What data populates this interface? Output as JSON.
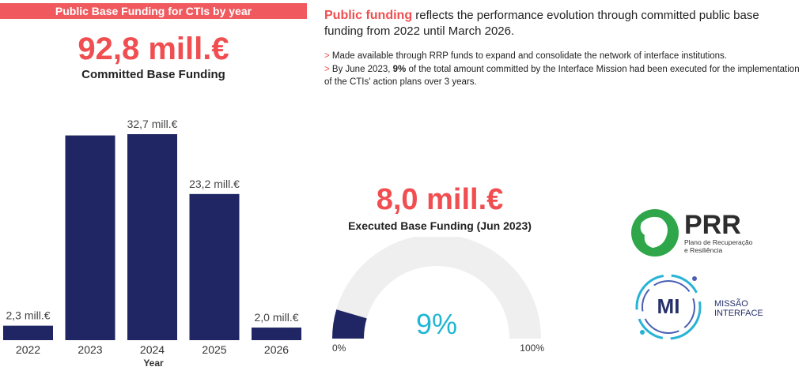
{
  "banner": {
    "title": "Public Base Funding for CTIs by year"
  },
  "committed": {
    "value": "92,8 mill.€",
    "label": "Committed Base Funding"
  },
  "intro": {
    "highlight": "Public funding",
    "rest": " reflects the performance evolution through committed public base funding from 2022 until March 2026."
  },
  "bullets": {
    "b1_marker": ">",
    "b1_text": " Made available through RRP funds to expand and consolidate the network of interface institutions.",
    "b2_marker": ">",
    "b2_pre": " By June 2023, ",
    "b2_bold": "9%",
    "b2_post": " of the total amount committed by the Interface Mission had been executed for the implementation of the CTIs' action plans over 3 years."
  },
  "executed": {
    "value": "8,0 mill.€",
    "label": "Executed Base Funding (Jun 2023)"
  },
  "chart_data": [
    {
      "type": "bar",
      "xlabel": "Year",
      "categories": [
        "2022",
        "2023",
        "2024",
        "2025",
        "2026"
      ],
      "values": [
        2.3,
        32.5,
        32.7,
        23.2,
        2.0
      ],
      "data_labels": [
        "2,3 mill.€",
        "",
        "32,7 mill.€",
        "23,2 mill.€",
        "2,0 mill.€"
      ],
      "ylim": [
        0,
        32.7
      ],
      "bar_color": "#1f2663"
    },
    {
      "type": "gauge",
      "value": 9,
      "value_label": "9%",
      "min_label": "0%",
      "max_label": "100%",
      "range": [
        0,
        100
      ],
      "fill_color": "#1f2663",
      "track_color": "#efefef",
      "value_color": "#1fb6d4"
    }
  ],
  "logos": {
    "prr_text": "PRR",
    "prr_sub1": "Plano de Recuperação",
    "prr_sub2": "e Resiliência",
    "mi_mark": "MI",
    "mi_word1": "MISSÃO",
    "mi_word2": "INTERFACE"
  }
}
